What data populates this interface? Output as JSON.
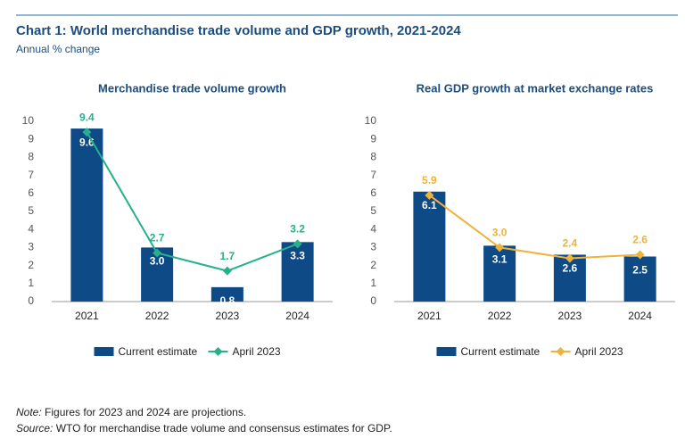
{
  "header": {
    "title": "Chart 1: World merchandise trade volume and GDP growth, 2021-2024",
    "subtitle": "Annual % change"
  },
  "notes": {
    "note_label": "Note:",
    "note": "Figures for 2023 and 2024 are projections.",
    "source_label": "Source:",
    "source": "WTO for merchandise trade volume and consensus estimates for GDP."
  },
  "chart_data": [
    {
      "type": "combo",
      "title": "Merchandise trade volume growth",
      "categories": [
        "2021",
        "2022",
        "2023",
        "2024"
      ],
      "ylim": [
        0,
        10
      ],
      "yticks": [
        0,
        1,
        2,
        3,
        4,
        5,
        6,
        7,
        8,
        9,
        10
      ],
      "series": [
        {
          "name": "Current estimate",
          "type": "bar",
          "color": "#0d4a86",
          "values": [
            9.6,
            3.0,
            0.8,
            3.3
          ],
          "value_labels": [
            "9.6",
            "3.0",
            "0.8",
            "3.3"
          ]
        },
        {
          "name": "April 2023",
          "type": "line",
          "color": "#26b08c",
          "values": [
            9.4,
            2.7,
            1.7,
            3.2
          ],
          "value_labels": [
            "9.4",
            "2.7",
            "1.7",
            "3.2"
          ]
        }
      ]
    },
    {
      "type": "combo",
      "title": "Real GDP growth at market exchange rates",
      "categories": [
        "2021",
        "2022",
        "2023",
        "2024"
      ],
      "ylim": [
        0,
        10
      ],
      "yticks": [
        0,
        1,
        2,
        3,
        4,
        5,
        6,
        7,
        8,
        9,
        10
      ],
      "series": [
        {
          "name": "Current estimate",
          "type": "bar",
          "color": "#0d4a86",
          "values": [
            6.1,
            3.1,
            2.6,
            2.5
          ],
          "value_labels": [
            "6.1",
            "3.1",
            "2.6",
            "2.5"
          ]
        },
        {
          "name": "April 2023",
          "type": "line",
          "color": "#efb23a",
          "values": [
            5.9,
            3.0,
            2.4,
            2.6
          ],
          "value_labels": [
            "5.9",
            "3.0",
            "2.4",
            "2.6"
          ]
        }
      ]
    }
  ]
}
